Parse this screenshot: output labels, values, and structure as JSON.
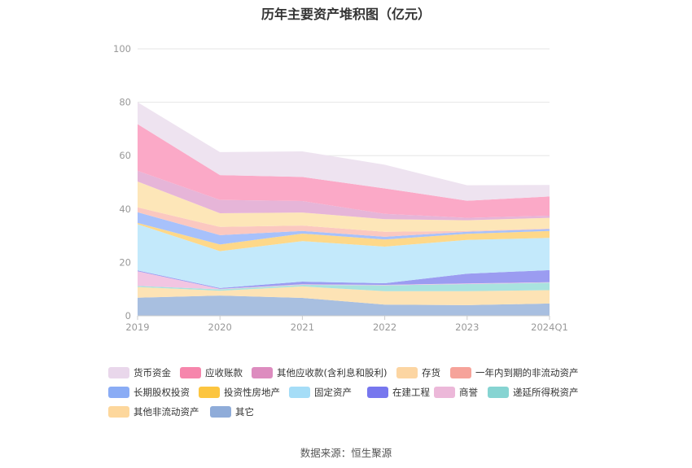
{
  "chart_data": {
    "type": "area",
    "stacked": true,
    "title": "历年主要资产堆积图（亿元）",
    "categories": [
      "2019",
      "2020",
      "2021",
      "2022",
      "2023",
      "2024Q1"
    ],
    "y_ticks": [
      "0",
      "20",
      "40",
      "60",
      "80",
      "100"
    ],
    "ylim": [
      0,
      100
    ],
    "grid": true,
    "legend_position": "bottom",
    "series": [
      {
        "name": "其它",
        "color": "#a8bfe0",
        "values": [
          6.8,
          7.6,
          6.7,
          4.2,
          4.0,
          4.6
        ]
      },
      {
        "name": "其他非流动资产",
        "color": "#fde3b5",
        "values": [
          4.0,
          1.8,
          4.3,
          5.0,
          5.2,
          5.0
        ]
      },
      {
        "name": "递延所得税资产",
        "color": "#a9e3df",
        "values": [
          0.4,
          0.5,
          0.6,
          2.2,
          2.7,
          2.8
        ]
      },
      {
        "name": "商誉",
        "color": "#f2c5e2",
        "values": [
          5.5,
          0.2,
          0.2,
          0.2,
          0.2,
          0.2
        ]
      },
      {
        "name": "在建工程",
        "color": "#9b9cf1",
        "values": [
          0.3,
          0.3,
          1.0,
          0.6,
          3.7,
          4.5
        ]
      },
      {
        "name": "固定资产",
        "color": "#c3e9fb",
        "values": [
          17.3,
          13.8,
          15.2,
          13.7,
          12.6,
          12.1
        ]
      },
      {
        "name": "投资性房地产",
        "color": "#fed889",
        "values": [
          0.5,
          2.5,
          2.8,
          2.7,
          2.3,
          2.6
        ]
      },
      {
        "name": "长期股权投资",
        "color": "#a7c1fb",
        "values": [
          4.0,
          3.5,
          1.0,
          1.0,
          0.8,
          0.7
        ]
      },
      {
        "name": "一年内到期的非流动资产",
        "color": "#fbc8c0",
        "values": [
          1.8,
          3.1,
          2.0,
          1.9,
          0.3,
          0.2
        ]
      },
      {
        "name": "存货",
        "color": "#fde6b8",
        "values": [
          9.7,
          5.1,
          4.9,
          4.7,
          4.0,
          4.0
        ]
      },
      {
        "name": "其他应收款(含利息和股利)",
        "color": "#e6b5d8",
        "values": [
          4.0,
          5.0,
          4.3,
          2.0,
          0.9,
          0.8
        ]
      },
      {
        "name": "应收账款",
        "color": "#fba9c7",
        "values": [
          17.5,
          9.3,
          9.0,
          9.5,
          6.4,
          7.2
        ]
      },
      {
        "name": "货币资金",
        "color": "#eee3f0",
        "values": [
          8.2,
          8.6,
          9.6,
          8.9,
          5.8,
          4.3
        ]
      }
    ],
    "legend": [
      {
        "name": "货币资金",
        "color": "#e9d7eb"
      },
      {
        "name": "应收账款",
        "color": "#f686ac"
      },
      {
        "name": "其他应收款(含利息和股利)",
        "color": "#dd8cbf"
      },
      {
        "name": "存货",
        "color": "#fcd5a2"
      },
      {
        "name": "一年内到期的非流动资产",
        "color": "#f6a39a"
      },
      {
        "name": "长期股权投资",
        "color": "#8aacf5"
      },
      {
        "name": "投资性房地产",
        "color": "#fcc540"
      },
      {
        "name": "固定资产",
        "color": "#a5ddf7"
      },
      {
        "name": "在建工程",
        "color": "#7777ee"
      },
      {
        "name": "商誉",
        "color": "#ecb8d9"
      },
      {
        "name": "递延所得税资产",
        "color": "#86d4d2"
      },
      {
        "name": "其他非流动资产",
        "color": "#fdd79c"
      },
      {
        "name": "其它",
        "color": "#8facd9"
      }
    ]
  },
  "source_text": "数据来源：恒生聚源"
}
